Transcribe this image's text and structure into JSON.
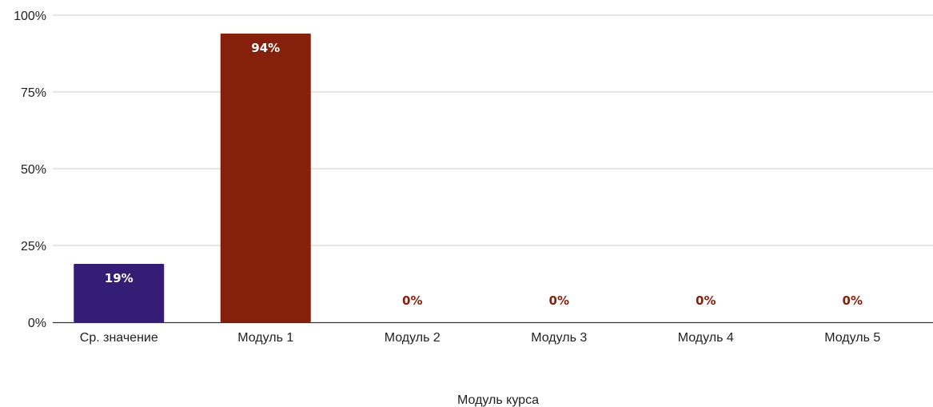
{
  "chart_data": {
    "type": "bar",
    "title": "",
    "xlabel": "Модуль курса",
    "ylabel": "",
    "ylim": [
      0,
      100
    ],
    "yticks": [
      0,
      25,
      50,
      75,
      100
    ],
    "ytick_labels": [
      "0%",
      "25%",
      "50%",
      "75%",
      "100%"
    ],
    "grid": true,
    "legend": "none",
    "categories": [
      "Ср. значение",
      "Модуль 1",
      "Модуль 2",
      "Модуль 3",
      "Модуль 4",
      "Модуль 5"
    ],
    "values": [
      19,
      94,
      0,
      0,
      0,
      0
    ],
    "data_labels": [
      "19%",
      "94%",
      "0%",
      "0%",
      "0%",
      "0%"
    ],
    "bar_colors": [
      "#351c75",
      "#85200c",
      "#85200c",
      "#85200c",
      "#85200c",
      "#85200c"
    ],
    "inside_label_color": "#ffffff",
    "outside_label_color": "#85200c",
    "grid_color": "#cccccc",
    "axis_color": "#333333"
  }
}
